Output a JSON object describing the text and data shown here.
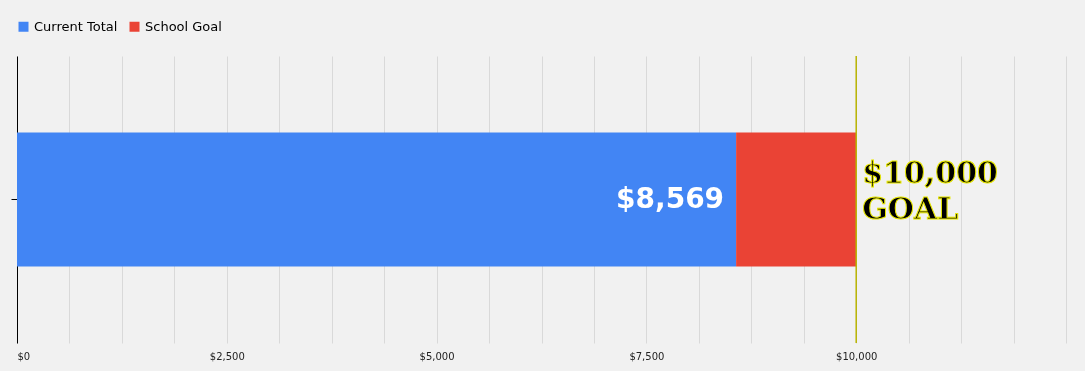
{
  "chart_data": {
    "type": "bar",
    "orientation": "horizontal",
    "stacked": true,
    "categories": [
      null
    ],
    "series": [
      {
        "name": "Current Total",
        "color": "#4285f4",
        "values": [
          8569
        ],
        "value_labels": [
          "$8,569"
        ]
      },
      {
        "name": "School Goal",
        "color": "#ea4335",
        "values": [
          1431
        ]
      }
    ],
    "xlim": [
      0,
      12500
    ],
    "xticks": [
      {
        "value": 0,
        "label": "$0"
      },
      {
        "value": 625,
        "label": null
      },
      {
        "value": 1250,
        "label": null
      },
      {
        "value": 1875,
        "label": null
      },
      {
        "value": 2500,
        "label": "$2,500"
      },
      {
        "value": 3125,
        "label": null
      },
      {
        "value": 3750,
        "label": null
      },
      {
        "value": 4375,
        "label": null
      },
      {
        "value": 5000,
        "label": "$5,000"
      },
      {
        "value": 5625,
        "label": null
      },
      {
        "value": 6250,
        "label": null
      },
      {
        "value": 6875,
        "label": null
      },
      {
        "value": 7500,
        "label": "$7,500"
      },
      {
        "value": 8125,
        "label": null
      },
      {
        "value": 8750,
        "label": null
      },
      {
        "value": 9375,
        "label": null
      },
      {
        "value": 10000,
        "label": "$10,000"
      },
      {
        "value": 10625,
        "label": null
      },
      {
        "value": 11250,
        "label": null
      },
      {
        "value": 11875,
        "label": null
      },
      {
        "value": 12500,
        "label": null
      }
    ],
    "ref_lines": [
      {
        "axis": "x",
        "value": 10000,
        "label": "$10,000 GOAL",
        "color": "#b8b400"
      }
    ],
    "grid": "x",
    "legend": "top",
    "tick_labels": "x"
  }
}
